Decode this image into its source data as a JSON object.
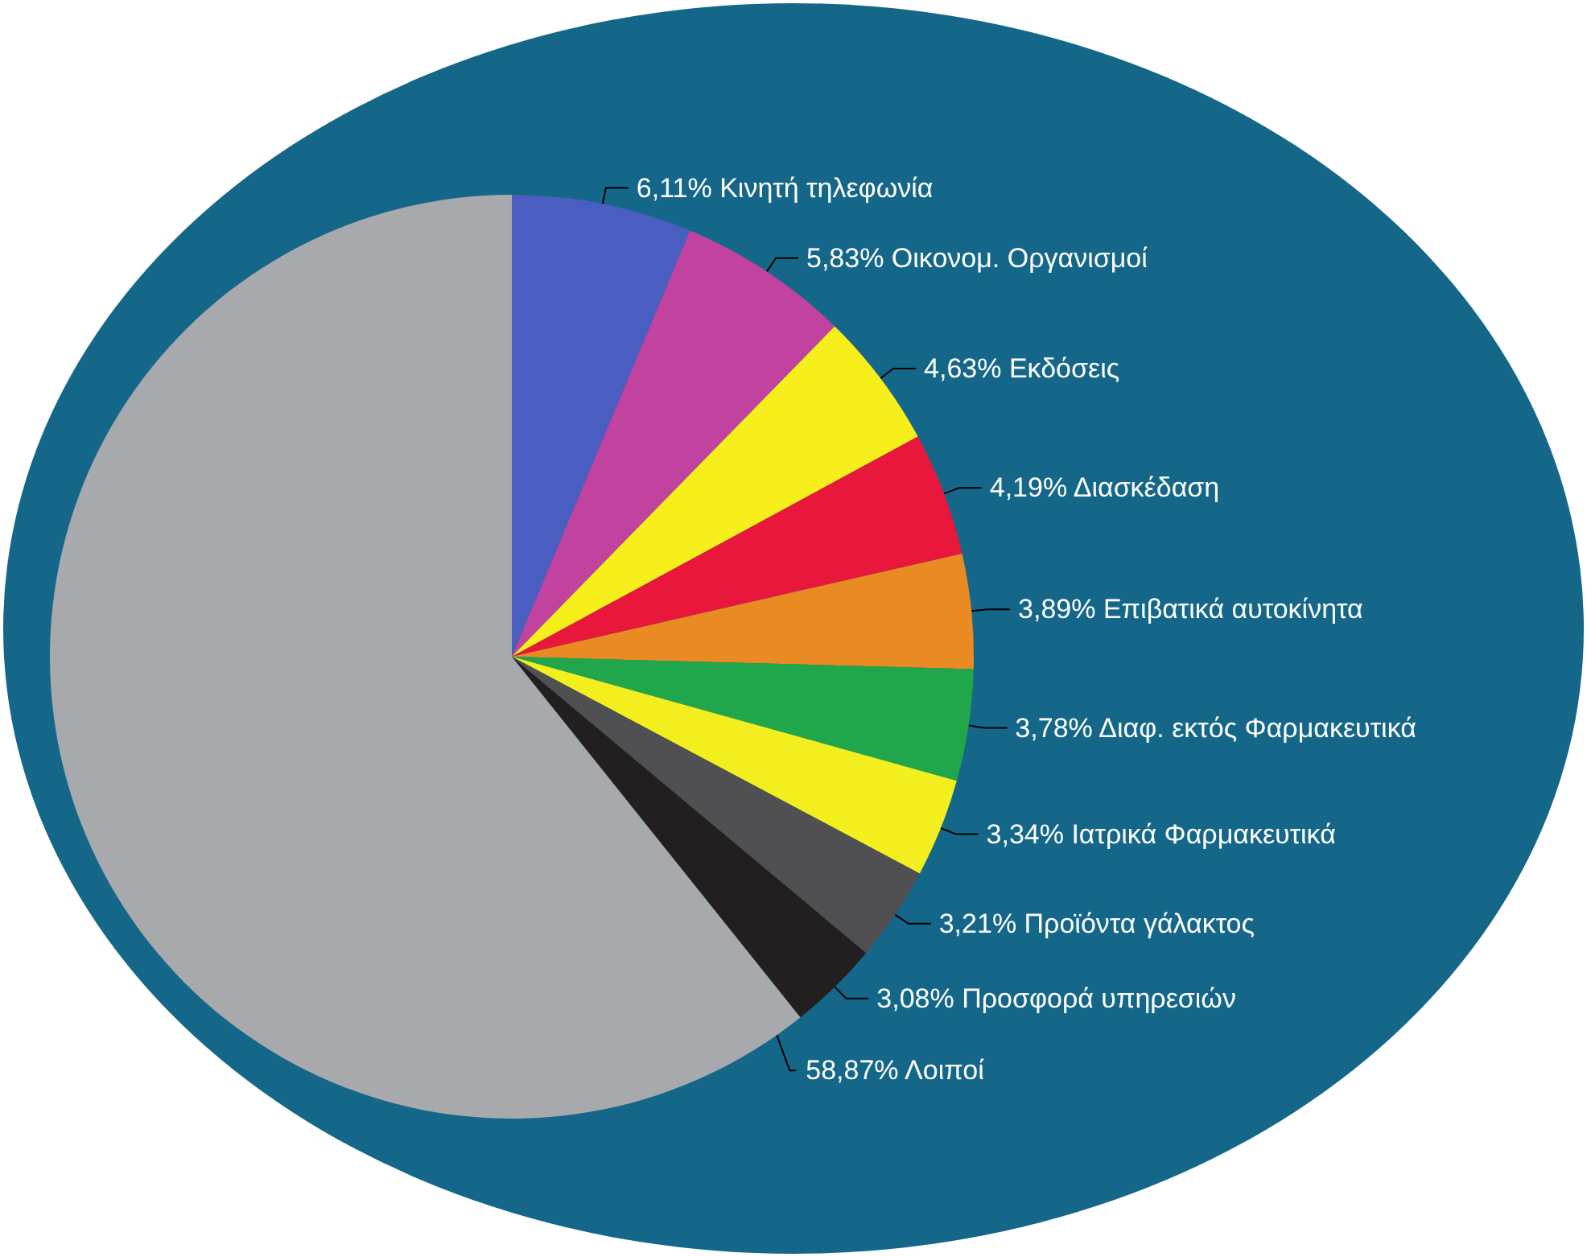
{
  "chart_data": {
    "type": "pie",
    "categories": [
      "Κινητή τηλεφωνία",
      "Οικονομ. Οργανισμοί",
      "Εκδόσεις",
      "Διασκέδαση",
      "Επιβατικά αυτοκίνητα",
      "Διαφ. εκτός Φαρμακευτικά",
      "Ιατρικά Φαρμακευτικά",
      "Προϊόντα γάλακτος",
      "Προσφορά υπηρεσιών",
      "Λοιποί"
    ],
    "values": [
      6.11,
      5.83,
      4.63,
      4.19,
      3.89,
      3.78,
      3.34,
      3.21,
      3.08,
      58.87
    ],
    "value_labels": [
      "6,11%",
      "5,83%",
      "4,63%",
      "4,19%",
      "3,89%",
      "3,78%",
      "3,34%",
      "3,21%",
      "3,08%",
      "58,87%"
    ],
    "colors": [
      "#4a5dc0",
      "#c1439f",
      "#f6ef1c",
      "#e8173b",
      "#ea8a22",
      "#20a64b",
      "#f3ee1e",
      "#505052",
      "#231f20",
      "#a8a9ac"
    ]
  }
}
